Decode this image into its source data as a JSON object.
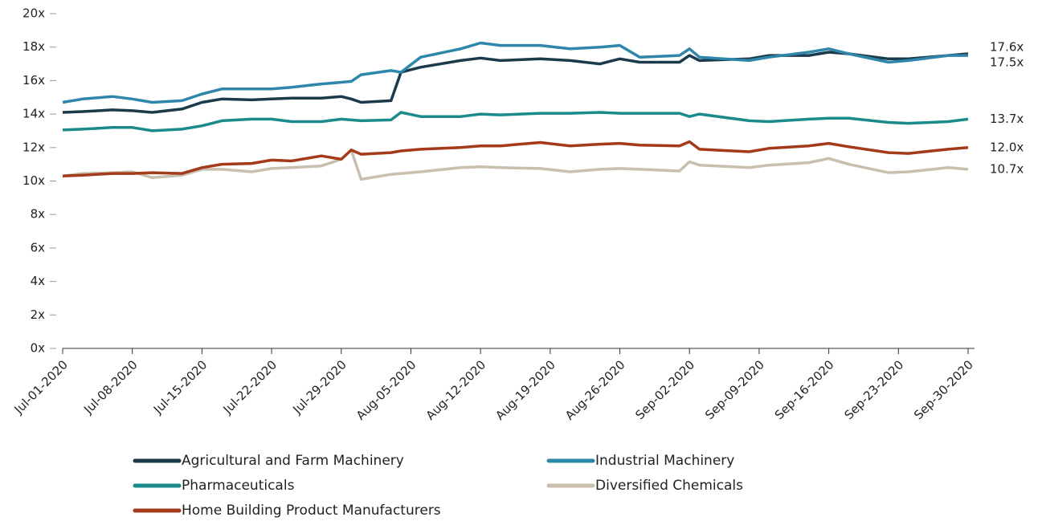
{
  "chart_data": {
    "type": "line",
    "x": [
      "2020-07-01",
      "2020-07-03",
      "2020-07-06",
      "2020-07-08",
      "2020-07-10",
      "2020-07-13",
      "2020-07-15",
      "2020-07-17",
      "2020-07-20",
      "2020-07-22",
      "2020-07-24",
      "2020-07-27",
      "2020-07-29",
      "2020-07-30",
      "2020-07-31",
      "2020-08-03",
      "2020-08-04",
      "2020-08-06",
      "2020-08-10",
      "2020-08-12",
      "2020-08-14",
      "2020-08-18",
      "2020-08-21",
      "2020-08-24",
      "2020-08-26",
      "2020-08-28",
      "2020-09-01",
      "2020-09-02",
      "2020-09-03",
      "2020-09-08",
      "2020-09-10",
      "2020-09-14",
      "2020-09-16",
      "2020-09-18",
      "2020-09-22",
      "2020-09-24",
      "2020-09-28",
      "2020-09-30"
    ],
    "series": [
      {
        "name": "Agricultural and Farm Machinery",
        "color": "#1b3a4b",
        "end_label": "17.6x",
        "values": [
          14.1,
          14.15,
          14.25,
          14.2,
          14.1,
          14.3,
          14.7,
          14.9,
          14.85,
          14.9,
          14.95,
          14.95,
          15.05,
          14.9,
          14.7,
          14.8,
          16.5,
          16.8,
          17.2,
          17.35,
          17.2,
          17.3,
          17.2,
          17.0,
          17.3,
          17.1,
          17.1,
          17.5,
          17.2,
          17.3,
          17.5,
          17.5,
          17.7,
          17.6,
          17.3,
          17.3,
          17.5,
          17.6
        ]
      },
      {
        "name": "Industrial Machinery",
        "color": "#2e86ab",
        "end_label": "17.5x",
        "values": [
          14.7,
          14.9,
          15.05,
          14.9,
          14.7,
          14.8,
          15.2,
          15.5,
          15.5,
          15.5,
          15.6,
          15.8,
          15.9,
          15.95,
          16.35,
          16.6,
          16.5,
          17.4,
          17.9,
          18.25,
          18.1,
          18.1,
          17.9,
          18.0,
          18.1,
          17.4,
          17.5,
          17.9,
          17.4,
          17.2,
          17.4,
          17.7,
          17.9,
          17.6,
          17.1,
          17.2,
          17.5,
          17.5
        ]
      },
      {
        "name": "Pharmaceuticals",
        "color": "#1a8a8a",
        "end_label": "13.7x",
        "values": [
          13.05,
          13.1,
          13.2,
          13.2,
          13.0,
          13.1,
          13.3,
          13.6,
          13.7,
          13.7,
          13.55,
          13.55,
          13.7,
          13.65,
          13.6,
          13.65,
          14.1,
          13.85,
          13.85,
          14.0,
          13.95,
          14.05,
          14.05,
          14.1,
          14.05,
          14.05,
          14.05,
          13.85,
          14.0,
          13.6,
          13.55,
          13.7,
          13.75,
          13.75,
          13.5,
          13.45,
          13.55,
          13.7
        ]
      },
      {
        "name": "Diversified Chemicals",
        "color": "#c8bfae",
        "end_label": "10.7x",
        "values": [
          10.3,
          10.45,
          10.5,
          10.55,
          10.2,
          10.35,
          10.7,
          10.7,
          10.55,
          10.75,
          10.8,
          10.9,
          11.3,
          11.85,
          10.1,
          10.4,
          10.45,
          10.55,
          10.8,
          10.85,
          10.8,
          10.75,
          10.55,
          10.7,
          10.75,
          10.7,
          10.6,
          11.15,
          10.95,
          10.8,
          10.95,
          11.1,
          11.35,
          11.0,
          10.5,
          10.55,
          10.8,
          10.7
        ]
      },
      {
        "name": "Home Building Product Manufacturers",
        "color": "#a33a1a",
        "end_label": "12.0x",
        "values": [
          10.3,
          10.35,
          10.45,
          10.45,
          10.5,
          10.45,
          10.8,
          11.0,
          11.05,
          11.25,
          11.2,
          11.5,
          11.3,
          11.85,
          11.6,
          11.7,
          11.8,
          11.9,
          12.0,
          12.1,
          12.1,
          12.3,
          12.1,
          12.2,
          12.25,
          12.15,
          12.1,
          12.35,
          11.9,
          11.75,
          11.95,
          12.1,
          12.25,
          12.05,
          11.7,
          11.65,
          11.9,
          12.0
        ]
      }
    ],
    "xlim": [
      "2020-07-01",
      "2020-09-30"
    ],
    "xticks": [
      {
        "value": "2020-07-01",
        "label": "Jul-01-2020"
      },
      {
        "value": "2020-07-08",
        "label": "Jul-08-2020"
      },
      {
        "value": "2020-07-15",
        "label": "Jul-15-2020"
      },
      {
        "value": "2020-07-22",
        "label": "Jul-22-2020"
      },
      {
        "value": "2020-07-29",
        "label": "Jul-29-2020"
      },
      {
        "value": "2020-08-05",
        "label": "Aug-05-2020"
      },
      {
        "value": "2020-08-12",
        "label": "Aug-12-2020"
      },
      {
        "value": "2020-08-19",
        "label": "Aug-19-2020"
      },
      {
        "value": "2020-08-26",
        "label": "Aug-26-2020"
      },
      {
        "value": "2020-09-02",
        "label": "Sep-02-2020"
      },
      {
        "value": "2020-09-09",
        "label": "Sep-09-2020"
      },
      {
        "value": "2020-09-16",
        "label": "Sep-16-2020"
      },
      {
        "value": "2020-09-23",
        "label": "Sep-23-2020"
      },
      {
        "value": "2020-09-30",
        "label": "Sep-30-2020"
      }
    ],
    "ylim": [
      0,
      20
    ],
    "yticks": [
      {
        "value": 0,
        "label": "0x"
      },
      {
        "value": 2,
        "label": "2x"
      },
      {
        "value": 4,
        "label": "4x"
      },
      {
        "value": 6,
        "label": "6x"
      },
      {
        "value": 8,
        "label": "8x"
      },
      {
        "value": 10,
        "label": "10x"
      },
      {
        "value": 12,
        "label": "12x"
      },
      {
        "value": 14,
        "label": "14x"
      },
      {
        "value": 16,
        "label": "16x"
      },
      {
        "value": 18,
        "label": "18x"
      },
      {
        "value": 20,
        "label": "20x"
      }
    ]
  }
}
